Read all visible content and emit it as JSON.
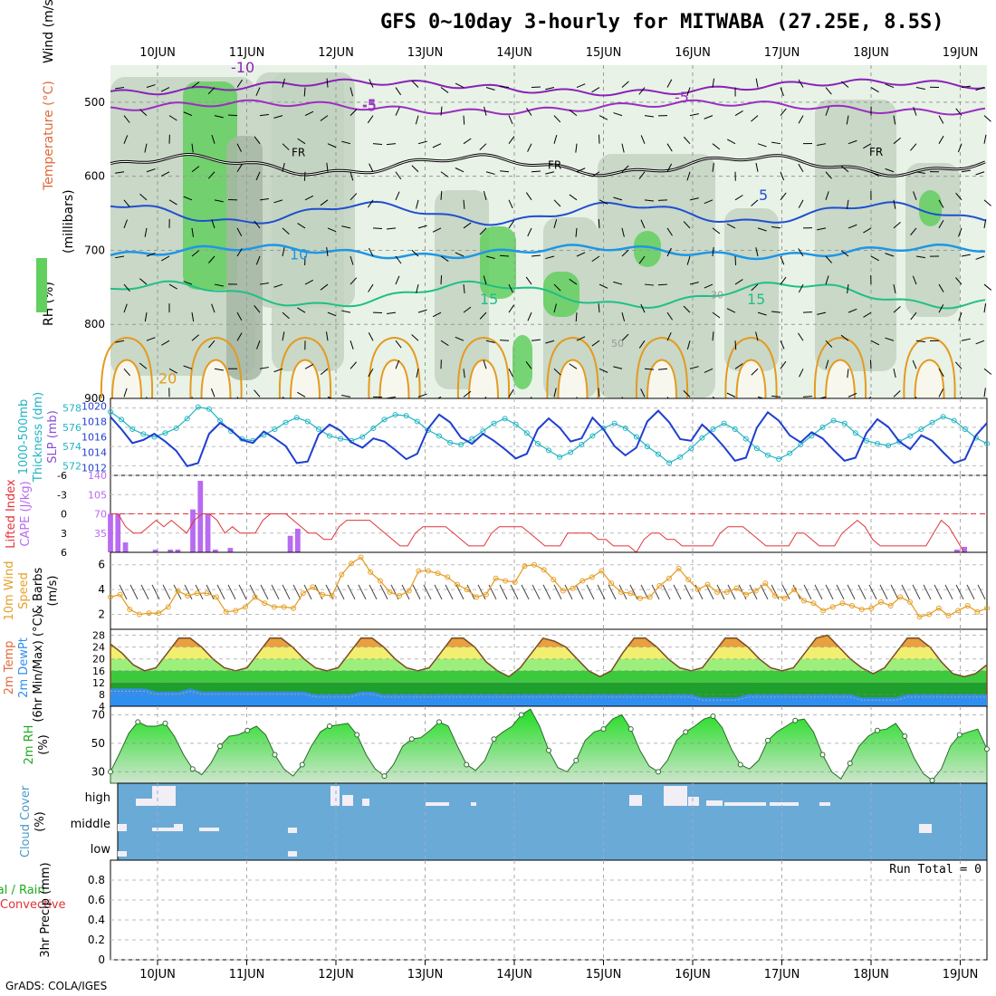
{
  "title": "GFS 0~10day 3-hourly for MITWABA (27.25E, 8.5S)",
  "footer": "GrADS: COLA/IGES",
  "colors": {
    "rh_light": "#e8f2e6",
    "rh_mid": "#c3d3c1",
    "rh_dark": "#a6b7a4",
    "rh_green": "#63cf5f",
    "t_minus10": "#8a22b8",
    "t_minus5": "#9a2ec2",
    "t_fr": "#000000",
    "t_5": "#1f4fd0",
    "t_10": "#1e96e6",
    "t_15": "#1fbf86",
    "t_20": "#e49a1f",
    "slp": "#1f3fd0",
    "thick": "#20b4c4",
    "cape": "#b86af0",
    "li": "#e0333a",
    "wind": "#e6a02a",
    "temp_hot": "#e8a040",
    "temp_warm": "#f2ef70",
    "temp_mild": "#9cef7a",
    "temp_cool": "#3cc93e",
    "temp_cold": "#1f9f2b",
    "dew": "#2f8ff0",
    "rh_fill_dark": "#1fdd1f",
    "rh_fill_light": "#cfe6cf",
    "cloud_bg": "#6aaad6",
    "cloud_white": "#f1eef6"
  },
  "chart_data": {
    "type": "meteogram",
    "x": {
      "dates": [
        "10JUN",
        "11JUN",
        "12JUN",
        "13JUN",
        "14JUN",
        "15JUN",
        "16JUN",
        "17JUN",
        "18JUN",
        "19JUN"
      ],
      "steps_per_day": 8
    },
    "panels": [
      {
        "id": "profile",
        "ylabels": [
          "Wind (m/s)",
          "Temperature (°C)",
          "RH (%)",
          "(millibars)"
        ],
        "yticks": [
          500,
          600,
          700,
          800,
          900
        ],
        "ylim": [
          450,
          900
        ],
        "isotherm_labels": [
          "-10",
          "-5",
          "-5",
          "FR",
          "FR",
          "FR",
          "-5",
          "5",
          "10",
          "15",
          "15",
          "20"
        ],
        "rh_labels": [
          "30",
          "50"
        ]
      },
      {
        "id": "slp_thickness",
        "ylabels": [
          "1000-500mb",
          "Thickness (dm)",
          "SLP (mb)"
        ],
        "yticks_left": [
          572,
          574,
          576,
          578
        ],
        "yticks_right": [
          1012,
          1014,
          1016,
          1018,
          1020
        ],
        "ylim_slp": [
          1011,
          1021
        ],
        "ylim_thick": [
          571,
          579
        ],
        "slp": [
          1018.6,
          1017.0,
          1015.2,
          1015.6,
          1016.4,
          1015.4,
          1014.2,
          1012.2,
          1012.6,
          1016.4,
          1017.8,
          1016.9,
          1015.6,
          1015.2,
          1016.7,
          1015.8,
          1014.8,
          1012.6,
          1012.8,
          1016.3,
          1017.6,
          1016.8,
          1015.3,
          1014.6,
          1015.8,
          1015.4,
          1014.3,
          1013.1,
          1013.8,
          1017.1,
          1018.9,
          1017.9,
          1015.9,
          1015.1,
          1016.4,
          1015.5,
          1014.4,
          1013.2,
          1013.8,
          1017.0,
          1018.4,
          1017.2,
          1015.4,
          1015.8,
          1018.5,
          1017.0,
          1014.8,
          1013.6,
          1014.6,
          1018.0,
          1019.4,
          1017.9,
          1015.7,
          1015.5,
          1017.6,
          1016.3,
          1014.7,
          1012.9,
          1013.3,
          1017.2,
          1019.2,
          1018.1,
          1016.2,
          1015.3,
          1016.6,
          1015.8,
          1014.3,
          1012.9,
          1013.3,
          1016.5,
          1018.3,
          1017.3,
          1015.4,
          1014.4,
          1016.2,
          1015.5,
          1014.0,
          1012.6,
          1013.1,
          1016.2,
          1017.8
        ],
        "thickness": [
          577.6,
          576.8,
          575.8,
          575.3,
          575.0,
          575.4,
          575.9,
          576.9,
          578.1,
          577.9,
          576.7,
          575.6,
          574.8,
          574.6,
          575.2,
          575.8,
          576.5,
          577.0,
          576.6,
          575.8,
          575.1,
          574.8,
          574.6,
          575.0,
          575.9,
          576.8,
          577.3,
          577.2,
          576.6,
          575.7,
          575.1,
          574.4,
          574.2,
          574.8,
          575.6,
          576.4,
          576.9,
          576.3,
          575.4,
          574.3,
          573.6,
          572.9,
          573.4,
          574.2,
          575.1,
          575.9,
          576.4,
          575.9,
          575.0,
          574.0,
          573.2,
          572.3,
          572.9,
          573.8,
          574.9,
          575.8,
          576.4,
          575.8,
          574.8,
          573.8,
          573.1,
          572.7,
          573.3,
          574.2,
          575.1,
          576.0,
          576.7,
          576.4,
          575.4,
          574.6,
          574.3,
          574.1,
          574.5,
          575.1,
          575.8,
          576.5,
          577.1,
          576.7,
          575.8,
          574.9,
          574.3
        ]
      },
      {
        "id": "cape_li",
        "ylabels": [
          "Lifted Index",
          "CAPE (J/kg)"
        ],
        "yticks_left": [
          "-6",
          "-3",
          "0",
          "3",
          "6"
        ],
        "yticks_right": [
          35,
          70,
          105,
          140
        ],
        "ylim_cape": [
          0,
          140
        ],
        "ylim_li": [
          -6,
          6
        ],
        "cape": [
          70,
          70,
          18,
          0,
          0,
          0,
          5,
          0,
          5,
          5,
          0,
          78,
          130,
          70,
          5,
          0,
          8,
          0,
          0,
          0,
          0,
          0,
          0,
          0,
          30,
          43,
          0,
          0,
          0,
          0,
          0,
          0,
          0,
          0,
          0,
          0,
          0,
          0,
          0,
          0,
          0,
          0,
          0,
          0,
          0,
          0,
          0,
          0,
          0,
          0,
          0,
          0,
          0,
          0,
          0,
          0,
          0,
          0,
          0,
          0,
          0,
          0,
          0,
          0,
          0,
          0,
          0,
          0,
          0,
          0,
          0,
          0,
          0,
          0,
          0,
          0,
          0,
          0,
          0,
          0,
          0,
          0,
          0,
          0,
          0,
          0,
          0,
          0,
          0,
          0,
          0,
          0,
          0,
          0,
          0,
          0,
          0,
          0,
          0,
          0,
          0,
          0,
          0,
          0,
          0,
          0,
          0,
          0,
          0,
          0,
          0,
          0,
          0,
          5,
          10,
          0,
          0,
          0
        ],
        "lifted_index": [
          0,
          0,
          2,
          3,
          3,
          2,
          1,
          2,
          1,
          2,
          3,
          1,
          0,
          0,
          1,
          3,
          2,
          3,
          3,
          3,
          1,
          0,
          0,
          0,
          1,
          2,
          3,
          3,
          4,
          4,
          2,
          1,
          1,
          1,
          1,
          2,
          3,
          4,
          5,
          5,
          3,
          2,
          2,
          2,
          2,
          3,
          4,
          5,
          5,
          5,
          3,
          2,
          2,
          2,
          2,
          3,
          4,
          5,
          5,
          5,
          3,
          3,
          3,
          3,
          4,
          4,
          5,
          5,
          5,
          6,
          4,
          3,
          3,
          4,
          4,
          5,
          5,
          5,
          5,
          5,
          3,
          2,
          2,
          2,
          3,
          4,
          5,
          5,
          5,
          5,
          3,
          3,
          4,
          5,
          5,
          5,
          3,
          2,
          1,
          2,
          4,
          5,
          5,
          5,
          5,
          5,
          5,
          5,
          3,
          1,
          2,
          4,
          6,
          6,
          6,
          6
        ]
      },
      {
        "id": "wind10m",
        "ylabels": [
          "10m Wind",
          "Speed",
          "& Barbs",
          "(m/s)"
        ],
        "yticks": [
          2,
          4,
          6
        ],
        "ylim": [
          0.8,
          7
        ],
        "wind_speed": [
          3.4,
          3.6,
          2.4,
          2.0,
          2.1,
          2.1,
          2.6,
          3.9,
          3.5,
          3.7,
          3.7,
          3.4,
          2.2,
          2.3,
          2.6,
          3.4,
          2.9,
          2.6,
          2.6,
          2.5,
          3.7,
          4.2,
          3.6,
          3.5,
          5.2,
          6.1,
          6.6,
          5.4,
          4.7,
          3.8,
          3.5,
          3.9,
          5.5,
          5.5,
          5.3,
          5.0,
          4.4,
          4.0,
          3.4,
          3.6,
          4.9,
          4.7,
          4.6,
          5.9,
          6.0,
          5.6,
          4.8,
          3.9,
          4.1,
          4.7,
          5.0,
          5.5,
          4.5,
          3.8,
          3.7,
          3.3,
          3.4,
          4.3,
          4.9,
          5.7,
          4.8,
          4.0,
          4.4,
          3.8,
          3.8,
          4.1,
          3.6,
          3.9,
          4.5,
          3.5,
          3.3,
          4.0,
          3.1,
          2.9,
          2.3,
          2.6,
          2.9,
          2.7,
          2.4,
          2.5,
          3.0,
          2.7,
          3.4,
          3.0,
          1.8,
          2.0,
          2.5,
          1.9,
          2.3,
          2.7,
          2.2,
          2.5
        ]
      },
      {
        "id": "temp2m",
        "ylabels": [
          "2m Temp",
          "2m DewPt",
          "(6hr Min/Max) (°C)"
        ],
        "yticks": [
          4,
          8,
          12,
          16,
          20,
          24,
          28
        ],
        "ylim": [
          4,
          30
        ],
        "temp": [
          25,
          22,
          18,
          16,
          17,
          22,
          27,
          27,
          24,
          20,
          17,
          16,
          17,
          22,
          27,
          27,
          24,
          20,
          17,
          16,
          17,
          22,
          27,
          27,
          24,
          20,
          17,
          16,
          17,
          22,
          27,
          27,
          24,
          19,
          16,
          14,
          17,
          22,
          27,
          26,
          24,
          20,
          16,
          14,
          16,
          22,
          27,
          27,
          24,
          20,
          17,
          16,
          17,
          22,
          27,
          27,
          24,
          20,
          17,
          16,
          17,
          22,
          27,
          28,
          24,
          20,
          17,
          15,
          17,
          22,
          27,
          27,
          24,
          19,
          15,
          14,
          15,
          18
        ],
        "dewpt": [
          10,
          10,
          10,
          10,
          9,
          9,
          9,
          10,
          9,
          9,
          9,
          9,
          9,
          9,
          9,
          9,
          9,
          9,
          8,
          8,
          8,
          8,
          9,
          9,
          8,
          8,
          8,
          8,
          8,
          8,
          8,
          8,
          8,
          8,
          8,
          8,
          8,
          8,
          8,
          8,
          8,
          8,
          8,
          8,
          8,
          8,
          8,
          8,
          8,
          8,
          8,
          8,
          7,
          7,
          7,
          7,
          8,
          8,
          8,
          8,
          8,
          8,
          8,
          8,
          8,
          8,
          7,
          7,
          7,
          7,
          8,
          8,
          8,
          8,
          8,
          8,
          8,
          8
        ]
      },
      {
        "id": "rh2m",
        "ylabels": [
          "2m RH",
          "(%)"
        ],
        "yticks": [
          30,
          50,
          70
        ],
        "ylim": [
          22,
          76
        ],
        "rh": [
          30,
          43,
          57,
          65,
          62,
          62,
          64,
          55,
          42,
          32,
          28,
          36,
          48,
          55,
          56,
          59,
          62,
          56,
          42,
          32,
          27,
          35,
          48,
          58,
          62,
          63,
          64,
          56,
          42,
          32,
          27,
          35,
          48,
          53,
          54,
          59,
          65,
          62,
          48,
          35,
          31,
          38,
          53,
          58,
          62,
          70,
          74,
          62,
          45,
          33,
          30,
          38,
          52,
          58,
          60,
          67,
          70,
          60,
          45,
          34,
          30,
          38,
          52,
          58,
          62,
          67,
          69,
          61,
          46,
          35,
          32,
          38,
          52,
          58,
          62,
          66,
          67,
          58,
          42,
          30,
          25,
          36,
          48,
          55,
          59,
          60,
          64,
          55,
          40,
          29,
          24,
          32,
          48,
          56,
          58,
          60,
          46
        ]
      },
      {
        "id": "cloud",
        "ylabels": [
          "Cloud Cover",
          "(%)"
        ],
        "levels": [
          "high",
          "middle",
          "low"
        ],
        "high": [
          0,
          0,
          0,
          0,
          0,
          2,
          5,
          6,
          10,
          10,
          0,
          0,
          0,
          0,
          0,
          0,
          0,
          0,
          0,
          0,
          0,
          0,
          0,
          0,
          0,
          0,
          0,
          0,
          0,
          0,
          10,
          6,
          0,
          0,
          0,
          0,
          0,
          0,
          0,
          0,
          0,
          0,
          0,
          0,
          0,
          0,
          0,
          0,
          0,
          0,
          0,
          0,
          0,
          0,
          0,
          0,
          0,
          0,
          0,
          0,
          0,
          0,
          0,
          0,
          0,
          0,
          0,
          0,
          0,
          0,
          0,
          0,
          0,
          0,
          0,
          0,
          0,
          0,
          0,
          0,
          0,
          0,
          0,
          0,
          0,
          0,
          0,
          0,
          0,
          0,
          0,
          0,
          0,
          0,
          0,
          0,
          0,
          0,
          0,
          0,
          0,
          0,
          0,
          0,
          0,
          0,
          0,
          0,
          0,
          0,
          0,
          0,
          0,
          0,
          0,
          0
        ],
        "middle": [],
        "low": []
      },
      {
        "id": "precip",
        "ylabels": [
          "Total / Rain",
          "Convective",
          "3hr Precip (mm)"
        ],
        "yticks": [
          0,
          0.2,
          0.4,
          0.6,
          0.8
        ],
        "ylim": [
          0,
          1
        ],
        "run_total": "Run Total = 0"
      }
    ]
  }
}
